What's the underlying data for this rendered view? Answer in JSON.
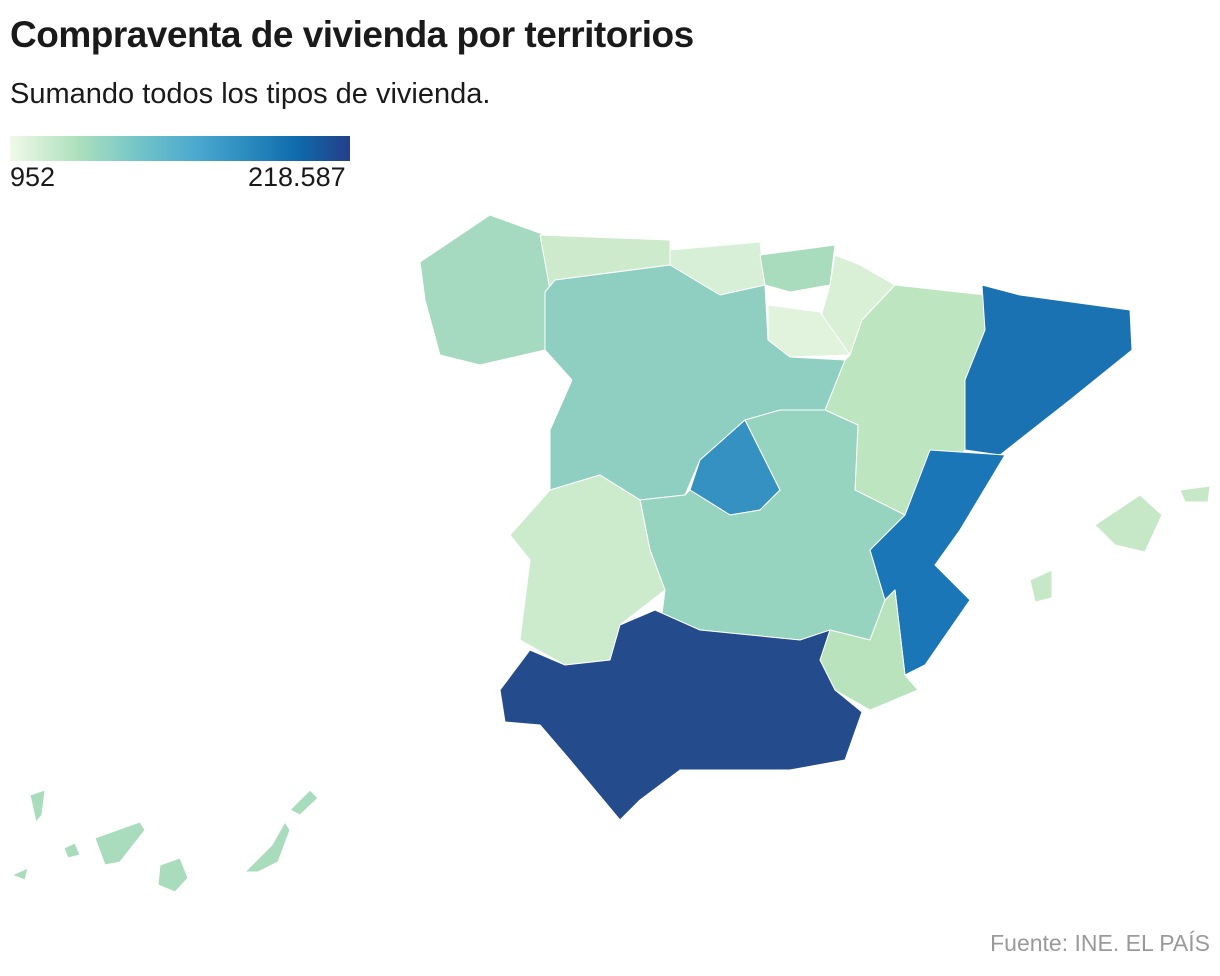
{
  "title": "Compraventa de vivienda por territorios",
  "subtitle": "Sumando todos los tipos de vivienda.",
  "legend": {
    "min": "952",
    "max": "218.587",
    "colors": [
      "#f0f9e8",
      "#ade0bd",
      "#4ba8cf",
      "#0e69aa",
      "#253f88"
    ]
  },
  "source": "Fuente: INE. EL PAÍS",
  "regions": {
    "galicia": "#a5d9c0",
    "asturias": "#cdeacc",
    "cantabria": "#d7efd6",
    "pais-vasco": "#a8dcbc",
    "navarra": "#d9f0d6",
    "la-rioja": "#e1f3dc",
    "aragon": "#bde5c0",
    "cataluna": "#1a72b2",
    "castilla-y-leon": "#8fcfc1",
    "madrid": "#3591c1",
    "castilla-la-mancha": "#97d4bf",
    "extremadura": "#ccebcc",
    "comunidad-valenciana": "#1a76b6",
    "murcia": "#b8e3bd",
    "andalucia": "#244b8c",
    "baleares": "#c7e8c7",
    "canarias": "#a9dcbc"
  }
}
